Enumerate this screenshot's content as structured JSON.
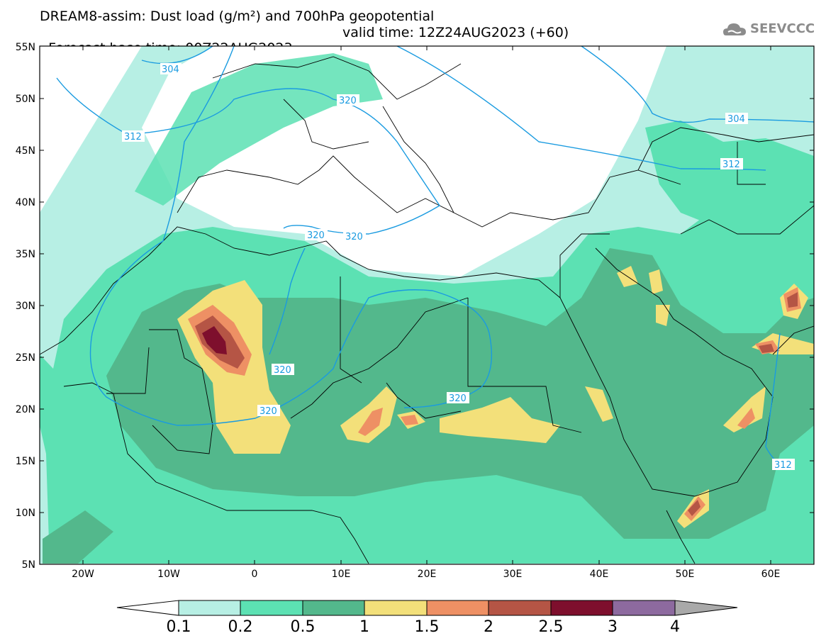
{
  "header": {
    "title_line1": "DREAM8-assim: Dust load (g/m²) and 700hPa geopotential",
    "title_line2_left": "Forecast base time: 00Z22AUG2023",
    "title_line2_right": "valid time: 12Z24AUG2023 (+60)",
    "logo_text": "SEEVCCC"
  },
  "map": {
    "lon_range": [
      -25,
      65
    ],
    "lat_range": [
      5,
      55
    ],
    "lat_labels": [
      "5N",
      "10N",
      "15N",
      "20N",
      "25N",
      "30N",
      "35N",
      "40N",
      "45N",
      "50N",
      "55N"
    ],
    "lon_labels": [
      "20W",
      "10W",
      "0",
      "10E",
      "20E",
      "30E",
      "40E",
      "50E",
      "60E"
    ],
    "contour_labels": [
      "304",
      "312",
      "320",
      "320",
      "320",
      "320",
      "320",
      "320",
      "304",
      "312",
      "312"
    ]
  },
  "legend": {
    "labels": [
      "0.1",
      "0.2",
      "0.5",
      "1",
      "1.5",
      "2",
      "2.5",
      "3",
      "4"
    ],
    "colors": [
      "#ffffff",
      "#b7efe4",
      "#5ce1b3",
      "#53b88c",
      "#f3e07a",
      "#ee9064",
      "#b55545",
      "#7e0f2d",
      "#8d6a9f",
      "#a9a9a9"
    ]
  }
}
